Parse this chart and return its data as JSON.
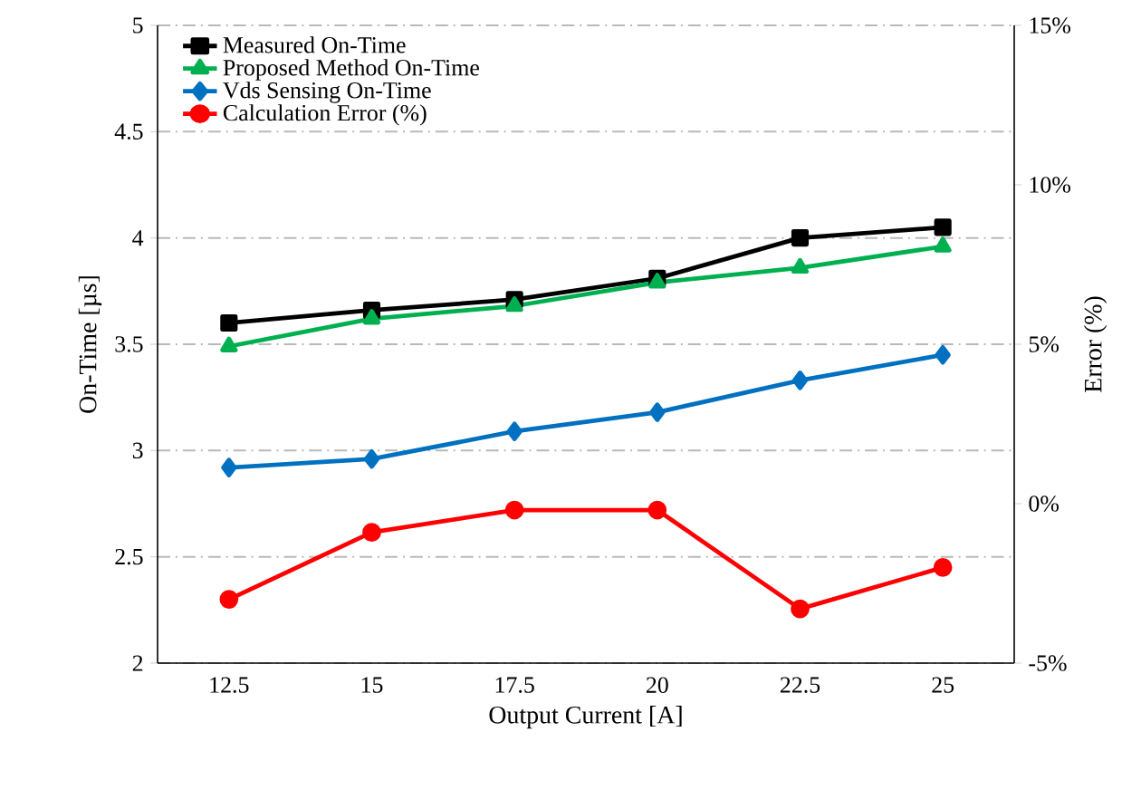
{
  "chart_data": {
    "type": "line",
    "xlabel": "Output Current [A]",
    "ylabel": "On-Time [µs]",
    "y2label": "Error (%)",
    "categories": [
      "12.5",
      "15",
      "17.5",
      "20",
      "22.5",
      "25"
    ],
    "series": [
      {
        "name": "Measured On-Time",
        "color": "#000000",
        "marker": "square",
        "values": [
          3.6,
          3.66,
          3.71,
          3.81,
          4.0,
          4.05
        ]
      },
      {
        "name": "Proposed Method On-Time",
        "color": "#00b050",
        "marker": "triangle",
        "values": [
          3.49,
          3.62,
          3.68,
          3.79,
          3.86,
          3.96
        ]
      },
      {
        "name": "Vds Sensing On-Time",
        "color": "#0070c0",
        "marker": "diamond",
        "values": [
          2.92,
          2.96,
          3.09,
          3.18,
          3.33,
          3.45
        ]
      },
      {
        "name": "Calculation Error (%)",
        "color": "#ff0000",
        "marker": "circle",
        "axis": "y2",
        "values": [
          -3.0,
          -0.9,
          -0.2,
          -0.2,
          -3.3,
          -2.0
        ]
      }
    ],
    "ylim": [
      2,
      5
    ],
    "yticks": [
      2,
      2.5,
      3,
      3.5,
      4,
      4.5,
      5
    ],
    "y2lim": [
      -5,
      15
    ],
    "y2ticks": [
      {
        "value": -5,
        "label": "-5%"
      },
      {
        "value": 0,
        "label": "0%"
      },
      {
        "value": 5,
        "label": "5%"
      },
      {
        "value": 10,
        "label": "10%"
      },
      {
        "value": 15,
        "label": "15%"
      }
    ],
    "grid": "y",
    "legend": "top left"
  }
}
